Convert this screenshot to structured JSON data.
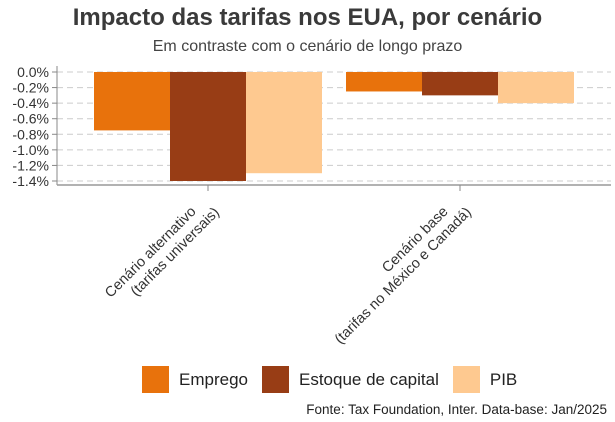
{
  "chart_data": {
    "type": "bar",
    "title": "Impacto das tarifas nos EUA, por cenário",
    "subtitle": "Em contraste com o cenário de longo prazo",
    "categories": [
      [
        "Cenário alternativo",
        "(tarifas universais)"
      ],
      [
        "Cenário base",
        "(tarifas no México e Canadá)"
      ]
    ],
    "series": [
      {
        "name": "Emprego",
        "color": "#e8720c",
        "values": [
          -0.75,
          -0.25
        ]
      },
      {
        "name": "Estoque de capital",
        "color": "#983d15",
        "values": [
          -1.4,
          -0.3
        ]
      },
      {
        "name": "PIB",
        "color": "#fec990",
        "values": [
          -1.3,
          -0.4
        ]
      }
    ],
    "ylim": [
      -1.4,
      0.0
    ],
    "yticks": [
      0.0,
      -0.2,
      -0.4,
      -0.6,
      -0.8,
      -1.0,
      -1.2,
      -1.4
    ],
    "ytick_labels": [
      "0.0%",
      "-0.2%",
      "-0.4%",
      "-0.6%",
      "-0.8%",
      "-1.0%",
      "-1.2%",
      "-1.4%"
    ],
    "xlabel": "",
    "ylabel": "",
    "grid": "horizontal dashed",
    "legend": "bottom"
  },
  "source": "Fonte: Tax Foundation, Inter. Data-base: Jan/2025"
}
